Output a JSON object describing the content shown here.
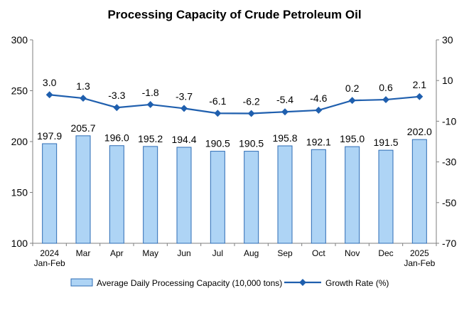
{
  "chart_data": {
    "type": "bar",
    "title": "Processing Capacity of Crude Petroleum Oil",
    "categories": [
      [
        "2024",
        "Jan-Feb"
      ],
      [
        "Mar"
      ],
      [
        "Apr"
      ],
      [
        "May"
      ],
      [
        "Jun"
      ],
      [
        "Jul"
      ],
      [
        "Aug"
      ],
      [
        "Sep"
      ],
      [
        "Oct"
      ],
      [
        "Nov"
      ],
      [
        "Dec"
      ],
      [
        "2025",
        "Jan-Feb"
      ]
    ],
    "series": [
      {
        "name": "Average Daily Processing Capacity (10,000 tons)",
        "type": "bar",
        "axis": "left",
        "color": "#aed4f5",
        "border": "#2e6cb5",
        "values": [
          197.9,
          205.7,
          196.0,
          195.2,
          194.4,
          190.5,
          190.5,
          195.8,
          192.1,
          195.0,
          191.5,
          202.0
        ],
        "value_labels": [
          "197.9",
          "205.7",
          "196.0",
          "195.2",
          "194.4",
          "190.5",
          "190.5",
          "195.8",
          "192.1",
          "195.0",
          "191.5",
          "202.0"
        ]
      },
      {
        "name": "Growth Rate (%)",
        "type": "line",
        "axis": "right",
        "color": "#1f5fae",
        "values": [
          3.0,
          1.3,
          -3.3,
          -1.8,
          -3.7,
          -6.1,
          -6.2,
          -5.4,
          -4.6,
          0.2,
          0.6,
          2.1
        ],
        "value_labels": [
          "3.0",
          "1.3",
          "-3.3",
          "-1.8",
          "-3.7",
          "-6.1",
          "-6.2",
          "-5.4",
          "-4.6",
          "0.2",
          "0.6",
          "2.1"
        ]
      }
    ],
    "y_left": {
      "min": 100,
      "max": 300,
      "ticks": [
        "100",
        "150",
        "200",
        "250",
        "300"
      ]
    },
    "y_right": {
      "min": -70,
      "max": 30,
      "ticks": [
        "-70",
        "-50",
        "-30",
        "-10",
        "10",
        "30"
      ]
    },
    "grid": false,
    "legend": "bottom"
  }
}
